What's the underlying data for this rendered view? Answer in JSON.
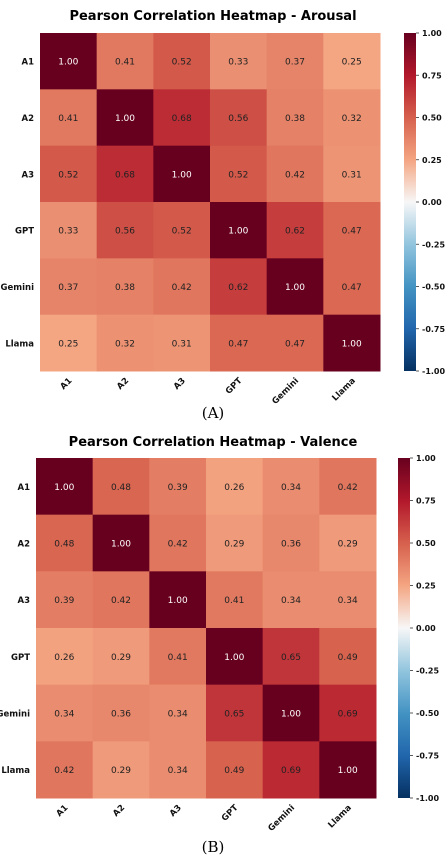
{
  "chart_data": [
    {
      "type": "heatmap",
      "title": "Pearson Correlation Heatmap - Arousal",
      "panel_label": "(A)",
      "rows": [
        "A1",
        "A2",
        "A3",
        "GPT",
        "Gemini",
        "Llama"
      ],
      "cols": [
        "A1",
        "A2",
        "A3",
        "GPT",
        "Gemini",
        "Llama"
      ],
      "values": [
        [
          1.0,
          0.41,
          0.52,
          0.33,
          0.37,
          0.25
        ],
        [
          0.41,
          1.0,
          0.68,
          0.56,
          0.38,
          0.32
        ],
        [
          0.52,
          0.68,
          1.0,
          0.52,
          0.42,
          0.31
        ],
        [
          0.33,
          0.56,
          0.52,
          1.0,
          0.62,
          0.47
        ],
        [
          0.37,
          0.38,
          0.42,
          0.62,
          1.0,
          0.47
        ],
        [
          0.25,
          0.32,
          0.31,
          0.47,
          0.47,
          1.0
        ]
      ],
      "colorbar": {
        "min": -1.0,
        "max": 1.0,
        "ticks": [
          "1.00",
          "0.75",
          "0.50",
          "0.25",
          "0.00",
          "-0.25",
          "-0.50",
          "-0.75",
          "-1.00"
        ],
        "colormap": "RdBu_r"
      }
    },
    {
      "type": "heatmap",
      "title": "Pearson Correlation Heatmap - Valence",
      "panel_label": "(B)",
      "rows": [
        "A1",
        "A2",
        "A3",
        "GPT",
        "Gemini",
        "Llama"
      ],
      "cols": [
        "A1",
        "A2",
        "A3",
        "GPT",
        "Gemini",
        "Llama"
      ],
      "values": [
        [
          1.0,
          0.48,
          0.39,
          0.26,
          0.34,
          0.42
        ],
        [
          0.48,
          1.0,
          0.42,
          0.29,
          0.36,
          0.29
        ],
        [
          0.39,
          0.42,
          1.0,
          0.41,
          0.34,
          0.34
        ],
        [
          0.26,
          0.29,
          0.41,
          1.0,
          0.65,
          0.49
        ],
        [
          0.34,
          0.36,
          0.34,
          0.65,
          1.0,
          0.69
        ],
        [
          0.42,
          0.29,
          0.34,
          0.49,
          0.69,
          1.0
        ]
      ],
      "colorbar": {
        "min": -1.0,
        "max": 1.0,
        "ticks": [
          "1.00",
          "0.75",
          "0.50",
          "0.25",
          "0.00",
          "-0.25",
          "-0.50",
          "-0.75",
          "-1.00"
        ],
        "colormap": "RdBu_r"
      }
    }
  ]
}
